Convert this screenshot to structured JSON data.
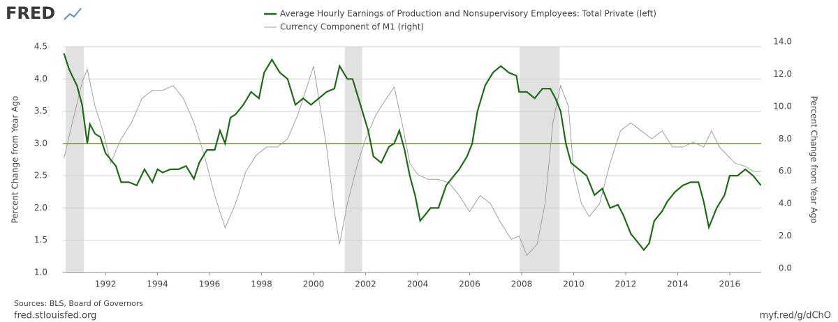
{
  "logo": "FRED",
  "sources": "Sources: BLS, Board of Governors",
  "site": "fred.stlouisfed.org",
  "link": "myf.red/g/dChO",
  "chart_data": {
    "type": "line",
    "y_label": "Percent Change from Year Ago",
    "y2_label": "Percent Change from Year Ago",
    "xlim": [
      1990.36,
      2017.21
    ],
    "xticks": [
      1992,
      1994,
      1996,
      1998,
      2000,
      2002,
      2004,
      2006,
      2008,
      2010,
      2012,
      2014,
      2016
    ],
    "ylim": [
      1.0,
      4.5
    ],
    "yticks": [
      {
        "value": 1,
        "label": "1.0"
      },
      1.5,
      {
        "value": 2,
        "label": "2.0"
      },
      2.5,
      {
        "value": 3,
        "label": "3.0"
      },
      3.5,
      {
        "value": 4,
        "label": "4.0"
      },
      4.5
    ],
    "y2lim": [
      -0.26,
      13.7
    ],
    "y2ticks": [
      {
        "value": 0,
        "label": "0.0"
      },
      {
        "value": 2,
        "label": "2.0"
      },
      {
        "value": 4,
        "label": "4.0"
      },
      {
        "value": 6,
        "label": "6.0"
      },
      {
        "value": 8,
        "label": "8.0"
      },
      {
        "value": 10,
        "label": "10.0"
      },
      {
        "value": 12,
        "label": "12.0"
      },
      {
        "value": 14,
        "label": "14.0"
      }
    ],
    "grid": true,
    "shaded_periods": [
      [
        1990.47,
        1991.17
      ],
      [
        2001.2,
        2001.87
      ],
      [
        2007.92,
        2009.46
      ]
    ],
    "reference_line": 3.0,
    "reference_color": "#74963a",
    "series": [
      {
        "name": "Average Hourly Earnings of Production and Nonsupervisory Employees: Total Private (left)",
        "color": "#1d6b16",
        "x": [
          1990.4,
          1990.6,
          1990.9,
          1991.1,
          1991.3,
          1991.4,
          1991.6,
          1991.8,
          1992.0,
          1992.2,
          1992.4,
          1992.6,
          1992.9,
          1993.2,
          1993.5,
          1993.8,
          1994.0,
          1994.2,
          1994.5,
          1994.8,
          1995.1,
          1995.4,
          1995.6,
          1995.9,
          1996.2,
          1996.4,
          1996.6,
          1996.8,
          1997.0,
          1997.3,
          1997.6,
          1997.9,
          1998.1,
          1998.4,
          1998.7,
          1999.0,
          1999.3,
          1999.6,
          1999.9,
          2000.2,
          2000.5,
          2000.8,
          2001.0,
          2001.3,
          2001.5,
          2001.8,
          2002.1,
          2002.3,
          2002.6,
          2002.9,
          2003.1,
          2003.3,
          2003.5,
          2003.7,
          2003.9,
          2004.1,
          2004.3,
          2004.5,
          2004.8,
          2005.1,
          2005.4,
          2005.6,
          2005.9,
          2006.1,
          2006.3,
          2006.6,
          2006.9,
          2007.2,
          2007.5,
          2007.8,
          2007.9,
          2008.2,
          2008.5,
          2008.8,
          2009.1,
          2009.3,
          2009.5,
          2009.7,
          2009.9,
          2010.2,
          2010.5,
          2010.8,
          2011.1,
          2011.4,
          2011.7,
          2011.9,
          2012.2,
          2012.4,
          2012.7,
          2012.9,
          2013.1,
          2013.4,
          2013.6,
          2013.9,
          2014.2,
          2014.5,
          2014.8,
          2015.0,
          2015.2,
          2015.5,
          2015.8,
          2016.0,
          2016.3,
          2016.6,
          2016.9,
          2017.2
        ],
        "values": [
          4.4,
          4.15,
          3.9,
          3.6,
          3.0,
          3.3,
          3.15,
          3.1,
          2.85,
          2.75,
          2.65,
          2.4,
          2.4,
          2.35,
          2.6,
          2.4,
          2.6,
          2.55,
          2.6,
          2.6,
          2.65,
          2.45,
          2.7,
          2.9,
          2.9,
          3.2,
          3.0,
          3.4,
          3.45,
          3.6,
          3.8,
          3.7,
          4.1,
          4.3,
          4.1,
          4.0,
          3.6,
          3.7,
          3.6,
          3.7,
          3.8,
          3.85,
          4.2,
          4.0,
          4.0,
          3.6,
          3.2,
          2.8,
          2.7,
          2.95,
          3.0,
          3.2,
          2.9,
          2.5,
          2.2,
          1.8,
          1.9,
          2.0,
          2.0,
          2.35,
          2.5,
          2.6,
          2.8,
          3.0,
          3.5,
          3.9,
          4.1,
          4.2,
          4.1,
          4.05,
          3.8,
          3.8,
          3.7,
          3.85,
          3.85,
          3.7,
          3.5,
          3.0,
          2.7,
          2.6,
          2.5,
          2.2,
          2.3,
          2.0,
          2.05,
          1.9,
          1.6,
          1.5,
          1.35,
          1.45,
          1.8,
          1.95,
          2.1,
          2.25,
          2.35,
          2.4,
          2.4,
          2.1,
          1.7,
          2.0,
          2.2,
          2.5,
          2.5,
          2.6,
          2.5,
          2.35
        ]
      },
      {
        "name": "Currency Component of M1 (right)",
        "color": "#a0a0a0",
        "axis": "y2",
        "x": [
          1990.4,
          1990.8,
          1991.1,
          1991.3,
          1991.6,
          1991.9,
          1992.2,
          1992.6,
          1993.0,
          1993.4,
          1993.8,
          1994.2,
          1994.6,
          1995.0,
          1995.4,
          1995.8,
          1996.2,
          1996.6,
          1997.0,
          1997.4,
          1997.8,
          1998.2,
          1998.6,
          1999.0,
          1999.4,
          1999.8,
          2000.0,
          2000.2,
          2000.5,
          2000.8,
          2001.0,
          2001.3,
          2001.7,
          2002.0,
          2002.4,
          2002.8,
          2003.1,
          2003.4,
          2003.7,
          2004.0,
          2004.4,
          2004.8,
          2005.2,
          2005.6,
          2006.0,
          2006.4,
          2006.8,
          2007.2,
          2007.6,
          2007.9,
          2008.2,
          2008.6,
          2008.9,
          2009.2,
          2009.5,
          2009.8,
          2010.0,
          2010.3,
          2010.6,
          2011.0,
          2011.4,
          2011.8,
          2012.2,
          2012.6,
          2013.0,
          2013.4,
          2013.8,
          2014.2,
          2014.6,
          2015.0,
          2015.3,
          2015.6,
          2015.9,
          2016.2,
          2016.6,
          2016.9,
          2017.2
        ],
        "values": [
          6.8,
          9.5,
          11.5,
          12.3,
          10.0,
          8.5,
          6.5,
          8.0,
          9.0,
          10.5,
          11.0,
          11.0,
          11.3,
          10.5,
          9.0,
          7.0,
          4.5,
          2.5,
          4.0,
          6.0,
          7.0,
          7.5,
          7.5,
          8.0,
          9.5,
          11.5,
          12.5,
          10.5,
          7.5,
          3.5,
          1.5,
          4.0,
          6.5,
          8.0,
          9.5,
          10.5,
          11.2,
          9.0,
          6.5,
          5.8,
          5.5,
          5.5,
          5.3,
          4.5,
          3.5,
          4.5,
          4.0,
          2.8,
          1.8,
          2.0,
          0.8,
          1.5,
          4.0,
          9.0,
          11.3,
          10.0,
          6.0,
          4.0,
          3.2,
          4.0,
          6.5,
          8.5,
          9.0,
          8.5,
          8.0,
          8.5,
          7.5,
          7.5,
          7.8,
          7.5,
          8.5,
          7.5,
          7.0,
          6.5,
          6.3,
          6.0,
          6.0
        ]
      }
    ]
  }
}
